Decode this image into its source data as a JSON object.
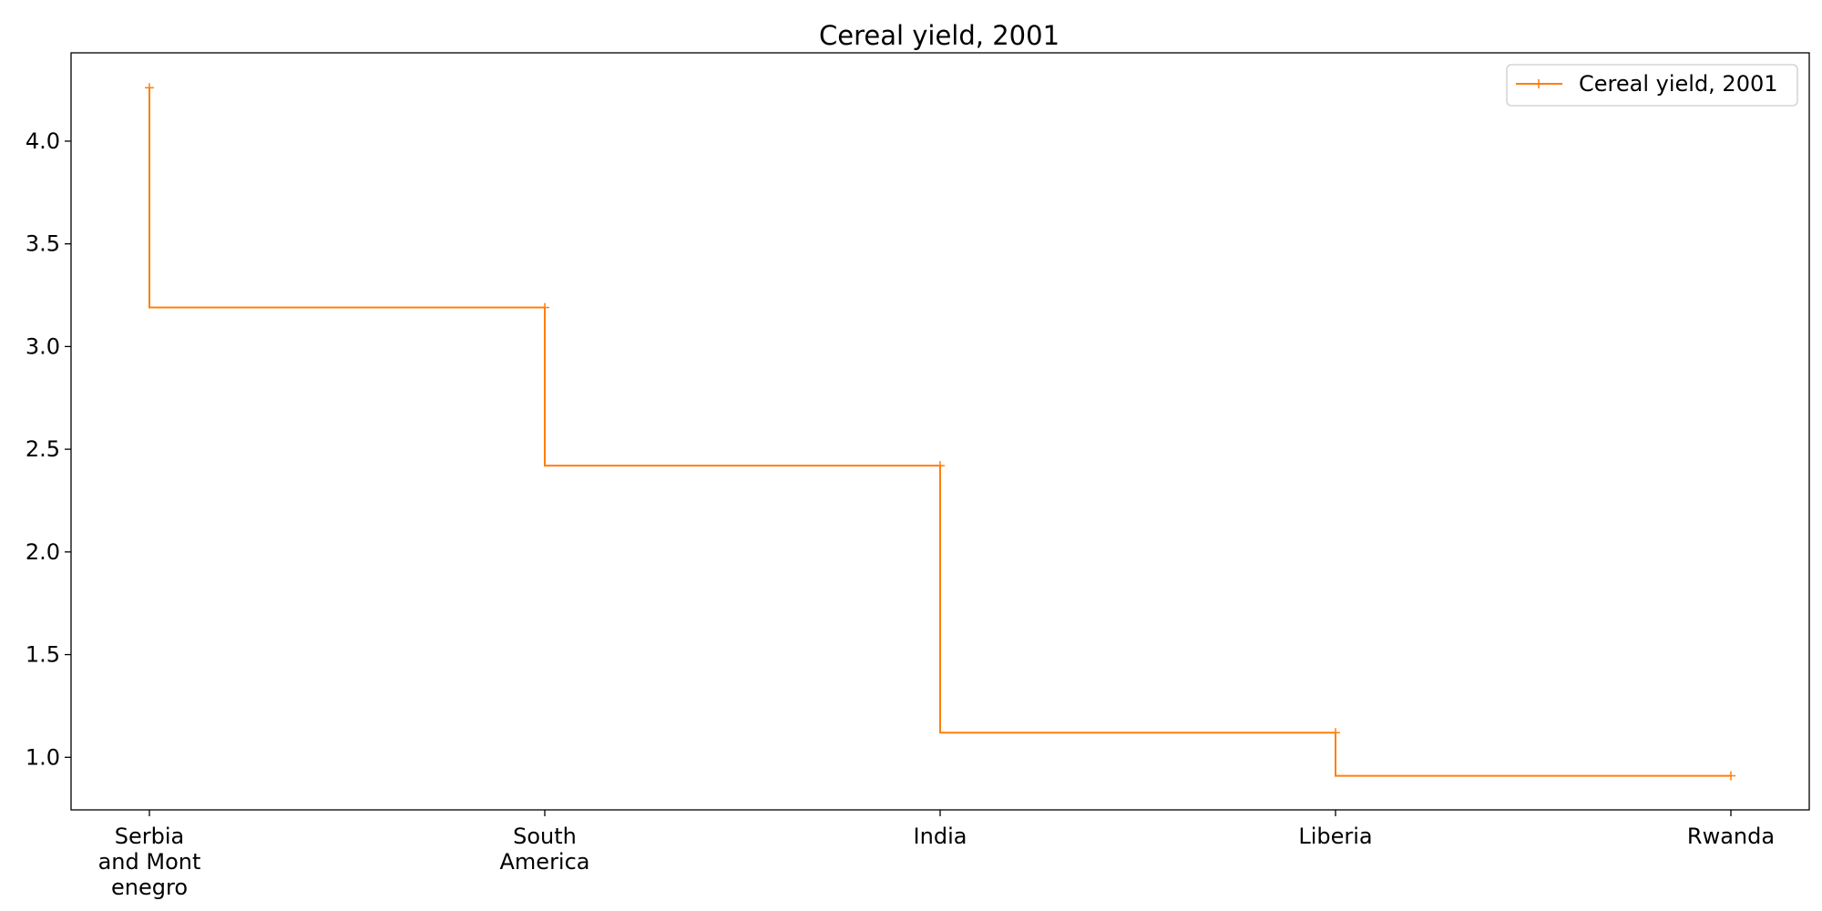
{
  "chart_data": {
    "type": "line",
    "step": "post",
    "title": "Cereal yield, 2001",
    "xlabel": "",
    "ylabel": "",
    "categories": [
      [
        "Serbia",
        "and Mont",
        "enegro"
      ],
      [
        "South",
        "America"
      ],
      [
        "India"
      ],
      [
        "Liberia"
      ],
      [
        "Rwanda"
      ]
    ],
    "series": [
      {
        "name": "Cereal yield, 2001",
        "values": [
          4.26,
          3.19,
          2.42,
          1.12,
          0.91
        ],
        "color": "#ff7f0e",
        "marker": "+"
      }
    ],
    "ylim": [
      0.744,
      4.43
    ],
    "yticks": [
      1.0,
      1.5,
      2.0,
      2.5,
      3.0,
      3.5,
      4.0
    ],
    "ytick_labels": [
      "1.0",
      "1.5",
      "2.0",
      "2.5",
      "3.0",
      "3.5",
      "4.0"
    ],
    "grid": false,
    "legend": {
      "placement": "top-right",
      "entries": [
        "Cereal yield, 2001"
      ]
    }
  }
}
